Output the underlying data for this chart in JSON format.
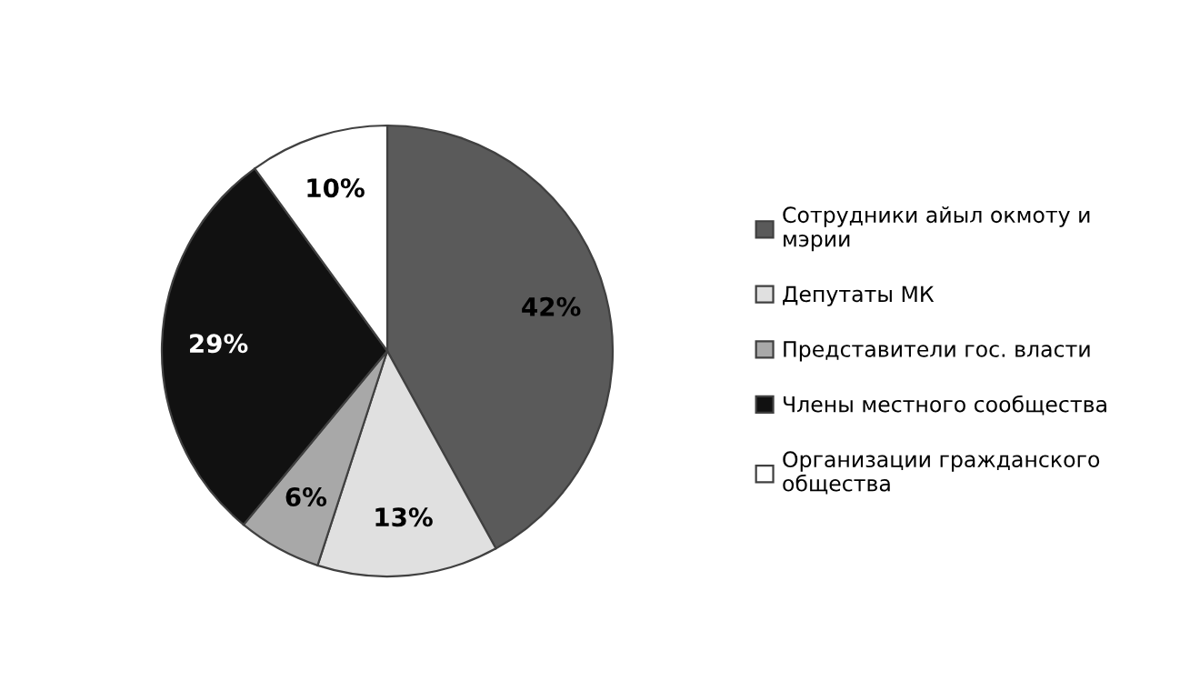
{
  "chart_data": {
    "type": "pie",
    "categories": [
      "Сотрудники айыл окмоту и мэрии",
      "Депутаты МК",
      "Представители гос. власти",
      "Члены местного сообщества",
      "Организации гражданского общества"
    ],
    "values": [
      42,
      13,
      6,
      29,
      10
    ],
    "colors": [
      "#5a5a5a",
      "#e0e0e0",
      "#a8a8a8",
      "#111111",
      "#ffffff"
    ],
    "value_labels": [
      "42%",
      "13%",
      "6%",
      "29%",
      "10%"
    ],
    "legend": "right"
  }
}
